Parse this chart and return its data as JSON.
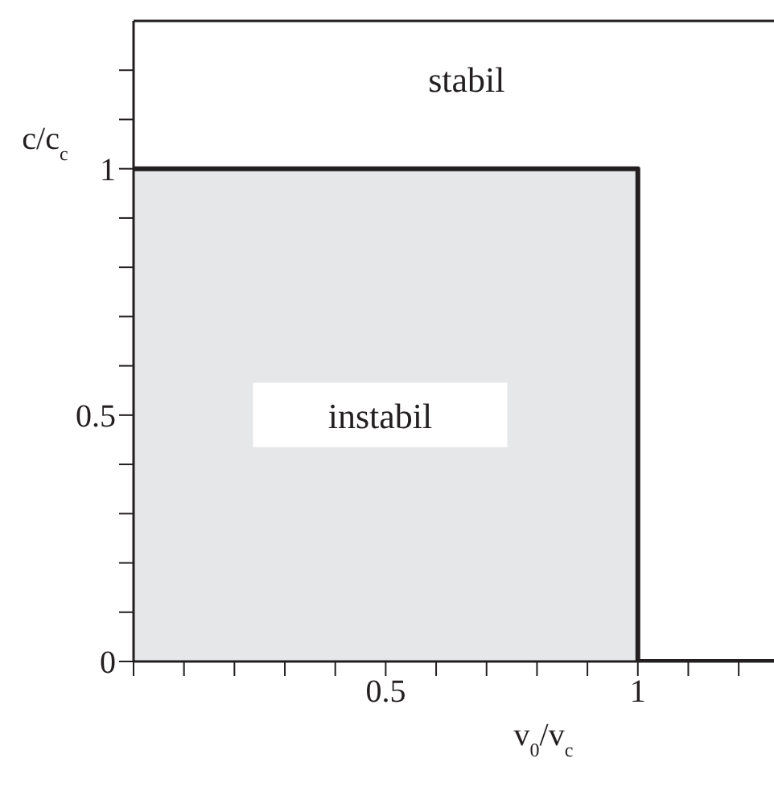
{
  "chart_data": {
    "type": "line",
    "xlabel": "v$_{0}$/v$_{c}$",
    "ylabel": "c/c$_{c}$",
    "xlim": [
      0,
      1.27
    ],
    "ylim": [
      0,
      1.3
    ],
    "xticks": [
      {
        "value": 0,
        "label": null
      },
      {
        "value": 0.1,
        "label": null
      },
      {
        "value": 0.2,
        "label": null
      },
      {
        "value": 0.3,
        "label": null
      },
      {
        "value": 0.4,
        "label": null
      },
      0.5,
      {
        "value": 0.6,
        "label": null
      },
      {
        "value": 0.7,
        "label": null
      },
      {
        "value": 0.8,
        "label": null
      },
      {
        "value": 0.9,
        "label": null
      },
      1,
      {
        "value": 1.1,
        "label": null
      },
      {
        "value": 1.2,
        "label": null
      }
    ],
    "yticks": [
      0,
      {
        "value": 0.1,
        "label": null
      },
      {
        "value": 0.2,
        "label": null
      },
      {
        "value": 0.3,
        "label": null
      },
      {
        "value": 0.4,
        "label": null
      },
      0.5,
      {
        "value": 0.6,
        "label": null
      },
      {
        "value": 0.7,
        "label": null
      },
      {
        "value": 0.8,
        "label": null
      },
      {
        "value": 0.9,
        "label": null
      },
      1,
      {
        "value": 1.1,
        "label": null
      },
      {
        "value": 1.2,
        "label": null
      }
    ],
    "series": [
      {
        "type": "area",
        "color": "#e6e7e9",
        "x": [
          0,
          1
        ],
        "values": [
          1,
          1
        ]
      },
      {
        "color": "#231f20",
        "x": [
          0,
          1,
          1,
          1.27
        ],
        "values": [
          1,
          1,
          0,
          0
        ]
      }
    ],
    "annotations": [
      "stabil",
      "instabil"
    ],
    "marker": "none",
    "line_style": "solid"
  }
}
